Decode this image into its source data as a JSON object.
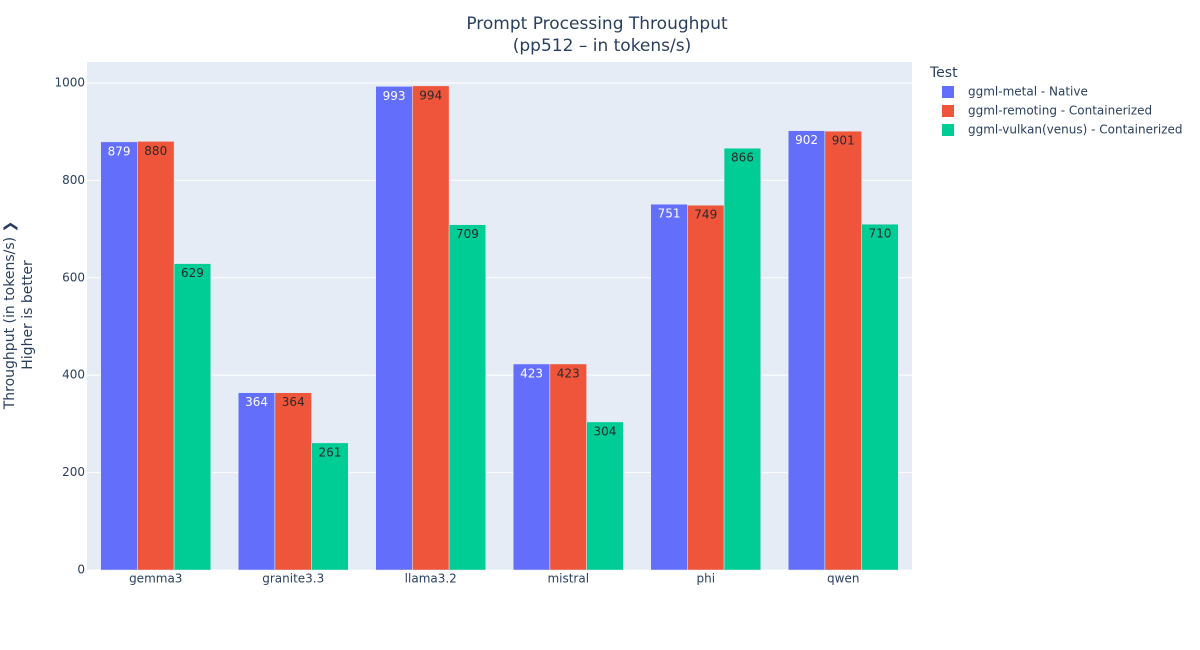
{
  "chart_data": {
    "type": "bar",
    "title": "Prompt Processing Throughput",
    "subtitle": "(pp512 – in tokens/s)",
    "ylabel": [
      "Throughput (in tokens/s) ❯",
      "Higher is better"
    ],
    "legend_title": "Test",
    "categories": [
      "gemma3",
      "granite3.3",
      "llama3.2",
      "mistral",
      "phi",
      "qwen"
    ],
    "series": [
      {
        "name": "ggml-metal - Native",
        "color": "#636efa",
        "text_color": "#ffffff",
        "values": [
          879,
          364,
          993,
          423,
          751,
          902
        ]
      },
      {
        "name": "ggml-remoting - Containerized",
        "color": "#ef553b",
        "text_color": "#2a2a2a",
        "values": [
          880,
          364,
          994,
          423,
          749,
          901
        ]
      },
      {
        "name": "ggml-vulkan(venus) - Containerized",
        "color": "#00cc96",
        "text_color": "#2a2a2a",
        "values": [
          629,
          261,
          709,
          304,
          866,
          710
        ]
      }
    ],
    "ylim": [
      0,
      1043
    ],
    "yticks": [
      0,
      200,
      400,
      600,
      800,
      1000
    ],
    "grid": true,
    "legend": "right"
  }
}
